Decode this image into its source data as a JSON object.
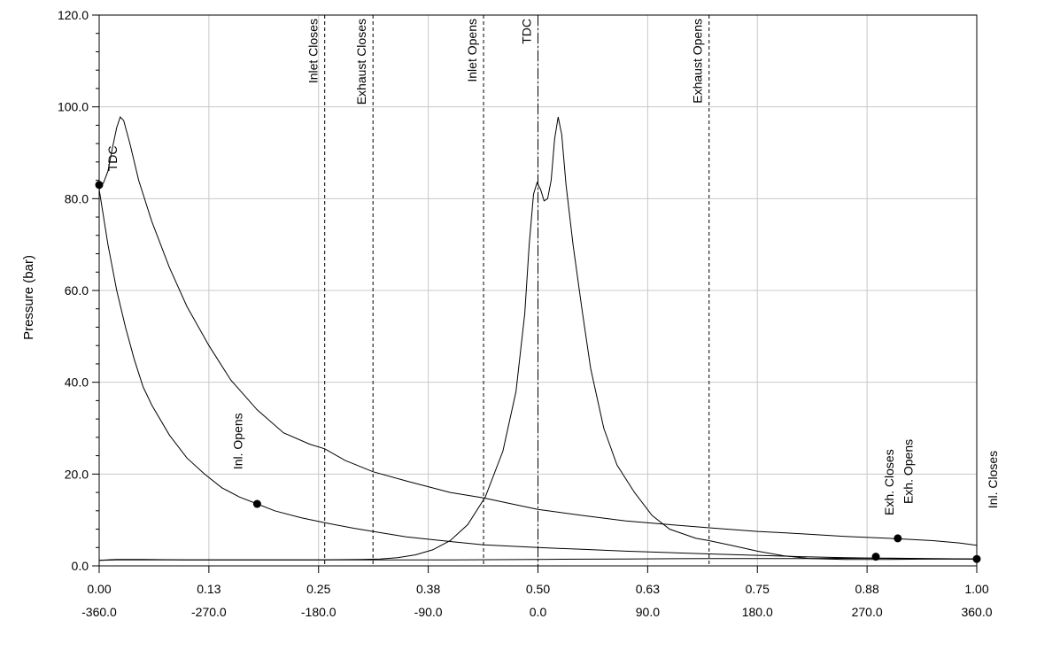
{
  "chart_data": {
    "type": "line",
    "title": "",
    "ylabel": "Pressure (bar)",
    "xlabel": "",
    "xlim": [
      0,
      1
    ],
    "ylim": [
      0,
      120
    ],
    "grid": true,
    "x_ticks": [
      {
        "value": 0.0,
        "primary": "0.00",
        "secondary": "-360.0"
      },
      {
        "value": 0.125,
        "primary": "0.13",
        "secondary": "-270.0"
      },
      {
        "value": 0.25,
        "primary": "0.25",
        "secondary": "-180.0"
      },
      {
        "value": 0.375,
        "primary": "0.38",
        "secondary": "-90.0"
      },
      {
        "value": 0.5,
        "primary": "0.50",
        "secondary": "0.0"
      },
      {
        "value": 0.625,
        "primary": "0.63",
        "secondary": "90.0"
      },
      {
        "value": 0.75,
        "primary": "0.75",
        "secondary": "180.0"
      },
      {
        "value": 0.875,
        "primary": "0.88",
        "secondary": "270.0"
      },
      {
        "value": 1.0,
        "primary": "1.00",
        "secondary": "360.0"
      }
    ],
    "y_ticks": [
      {
        "value": 0,
        "label": "0.0"
      },
      {
        "value": 20,
        "label": "20.0"
      },
      {
        "value": 40,
        "label": "40.0"
      },
      {
        "value": 60,
        "label": "60.0"
      },
      {
        "value": 80,
        "label": "80.0"
      },
      {
        "value": 100,
        "label": "100.0"
      },
      {
        "value": 120,
        "label": "120.0"
      }
    ],
    "event_lines": [
      {
        "label": "Inlet Closes",
        "x": 0.257,
        "style": "dashed"
      },
      {
        "label": "Exhaust Closes",
        "x": 0.312,
        "style": "dashed"
      },
      {
        "label": "Inlet Opens",
        "x": 0.438,
        "style": "dashed"
      },
      {
        "label": "TDC",
        "x": 0.5,
        "style": "dashdot"
      },
      {
        "label": "Exhaust Opens",
        "x": 0.695,
        "style": "dashed"
      }
    ],
    "series": [
      {
        "points": [
          [
            0.0,
            1.2
          ],
          [
            0.02,
            1.4
          ],
          [
            0.05,
            1.4
          ],
          [
            0.1,
            1.3
          ],
          [
            0.15,
            1.3
          ],
          [
            0.2,
            1.3
          ],
          [
            0.25,
            1.3
          ],
          [
            0.3,
            1.4
          ],
          [
            0.32,
            1.5
          ],
          [
            0.34,
            1.8
          ],
          [
            0.36,
            2.4
          ],
          [
            0.38,
            3.5
          ],
          [
            0.4,
            5.5
          ],
          [
            0.42,
            9.0
          ],
          [
            0.44,
            15.0
          ],
          [
            0.46,
            25.0
          ],
          [
            0.475,
            38.0
          ],
          [
            0.485,
            55.0
          ],
          [
            0.49,
            70.0
          ],
          [
            0.495,
            81.0
          ],
          [
            0.499,
            83.5
          ],
          [
            0.503,
            82.0
          ],
          [
            0.507,
            79.5
          ],
          [
            0.511,
            80.0
          ],
          [
            0.515,
            84.0
          ],
          [
            0.519,
            93.0
          ],
          [
            0.523,
            97.8
          ],
          [
            0.527,
            94.0
          ],
          [
            0.532,
            83.0
          ],
          [
            0.54,
            70.0
          ],
          [
            0.55,
            56.0
          ],
          [
            0.56,
            43.0
          ],
          [
            0.575,
            30.0
          ],
          [
            0.59,
            22.0
          ],
          [
            0.61,
            16.0
          ],
          [
            0.63,
            11.0
          ],
          [
            0.65,
            8.0
          ],
          [
            0.68,
            6.0
          ],
          [
            0.695,
            5.5
          ],
          [
            0.72,
            4.5
          ],
          [
            0.75,
            3.2
          ],
          [
            0.78,
            2.2
          ],
          [
            0.81,
            1.6
          ],
          [
            0.85,
            1.4
          ],
          [
            0.9,
            1.4
          ],
          [
            0.95,
            1.5
          ],
          [
            1.0,
            1.5
          ]
        ]
      },
      {
        "points": [
          [
            0.0,
            1.2
          ],
          [
            0.02,
            1.3
          ],
          [
            0.1,
            1.3
          ],
          [
            0.2,
            1.3
          ],
          [
            0.3,
            1.3
          ],
          [
            0.4,
            1.3
          ],
          [
            0.5,
            1.4
          ],
          [
            0.6,
            1.5
          ],
          [
            0.7,
            1.6
          ],
          [
            0.8,
            1.6
          ],
          [
            0.9,
            1.7
          ],
          [
            1.0,
            1.5
          ]
        ]
      },
      {
        "points": [
          [
            0.0,
            82.0
          ],
          [
            0.005,
            83.5
          ],
          [
            0.01,
            86.0
          ],
          [
            0.015,
            91.0
          ],
          [
            0.02,
            95.5
          ],
          [
            0.024,
            97.8
          ],
          [
            0.028,
            97.0
          ],
          [
            0.035,
            92.0
          ],
          [
            0.045,
            84.0
          ],
          [
            0.06,
            75.0
          ],
          [
            0.08,
            65.0
          ],
          [
            0.1,
            56.5
          ],
          [
            0.125,
            48.0
          ],
          [
            0.15,
            40.5
          ],
          [
            0.18,
            34.0
          ],
          [
            0.21,
            29.0
          ],
          [
            0.24,
            26.5
          ],
          [
            0.257,
            25.5
          ],
          [
            0.28,
            23.0
          ],
          [
            0.312,
            20.5
          ],
          [
            0.35,
            18.5
          ],
          [
            0.4,
            16.0
          ],
          [
            0.438,
            14.8
          ],
          [
            0.47,
            13.5
          ],
          [
            0.5,
            12.3
          ],
          [
            0.55,
            11.0
          ],
          [
            0.6,
            9.8
          ],
          [
            0.65,
            9.0
          ],
          [
            0.695,
            8.3
          ],
          [
            0.75,
            7.5
          ],
          [
            0.8,
            7.0
          ],
          [
            0.85,
            6.4
          ],
          [
            0.9,
            6.0
          ],
          [
            0.95,
            5.5
          ],
          [
            0.98,
            5.0
          ],
          [
            1.0,
            4.5
          ]
        ]
      },
      {
        "points": [
          [
            0.0,
            82.0
          ],
          [
            0.01,
            70.0
          ],
          [
            0.02,
            60.0
          ],
          [
            0.03,
            52.0
          ],
          [
            0.04,
            45.0
          ],
          [
            0.05,
            39.0
          ],
          [
            0.06,
            35.0
          ],
          [
            0.08,
            28.5
          ],
          [
            0.1,
            23.5
          ],
          [
            0.12,
            20.0
          ],
          [
            0.14,
            17.0
          ],
          [
            0.16,
            15.0
          ],
          [
            0.18,
            13.5
          ],
          [
            0.2,
            12.0
          ],
          [
            0.23,
            10.5
          ],
          [
            0.257,
            9.4
          ],
          [
            0.29,
            8.2
          ],
          [
            0.312,
            7.5
          ],
          [
            0.35,
            6.3
          ],
          [
            0.4,
            5.3
          ],
          [
            0.438,
            4.6
          ],
          [
            0.5,
            4.0
          ],
          [
            0.55,
            3.6
          ],
          [
            0.6,
            3.2
          ],
          [
            0.65,
            2.9
          ],
          [
            0.695,
            2.6
          ],
          [
            0.75,
            2.3
          ],
          [
            0.8,
            2.0
          ],
          [
            0.85,
            1.8
          ],
          [
            0.885,
            1.7
          ],
          [
            0.91,
            1.6
          ],
          [
            0.95,
            1.5
          ],
          [
            1.0,
            1.5
          ]
        ]
      }
    ],
    "markers": [
      {
        "x": 0.0,
        "y": 83.0
      },
      {
        "x": 0.18,
        "y": 13.5
      },
      {
        "x": 0.885,
        "y": 2.0
      },
      {
        "x": 0.91,
        "y": 6.0
      },
      {
        "x": 1.0,
        "y": 1.5
      }
    ],
    "annotations": [
      {
        "text": "TDC",
        "x": 0.02,
        "y": 86.0
      },
      {
        "text": "Inl. Opens",
        "x": 0.163,
        "y": 21.0
      },
      {
        "text": "Exh. Closes",
        "x": 0.905,
        "y": 11.0
      },
      {
        "text": "Exh. Opens",
        "x": 0.927,
        "y": 13.5
      },
      {
        "text": "Inl. Closes",
        "x": 1.023,
        "y": 12.5
      }
    ]
  }
}
